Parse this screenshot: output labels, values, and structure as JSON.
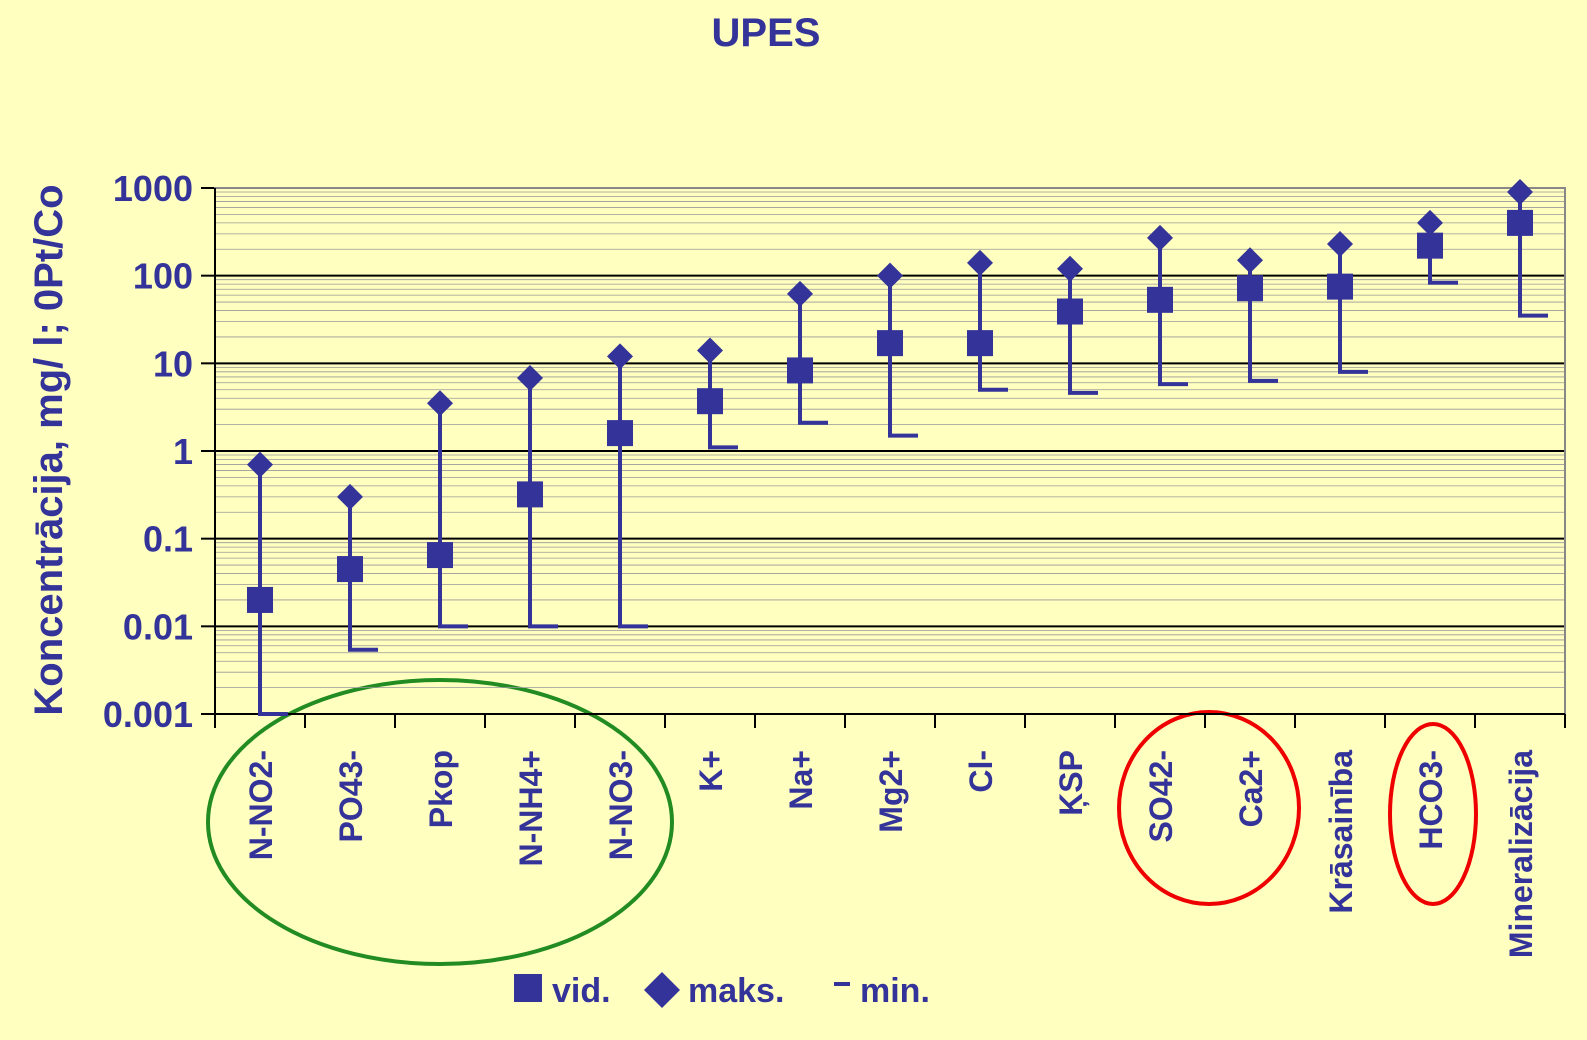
{
  "chart_data": {
    "type": "high-low",
    "title": "UPES",
    "y_label": "Koncentrācija, mg/ l; 0Pt/Co",
    "log_scale": true,
    "grid": true,
    "ylim": [
      0.001,
      1000
    ],
    "yticks": [
      1000,
      100,
      10,
      1,
      0.1,
      0.01,
      0.001
    ],
    "categories": [
      "N-NO2-",
      "PO43-",
      "Pkop",
      "N-NH4+",
      "N-NO3-",
      "K+",
      "Na+",
      "Mg2+",
      "Cl-",
      "ĶSP",
      "SO42-",
      "Ca2+",
      "Krāsainība",
      "HCO3-",
      "Mineralizācija"
    ],
    "series": [
      {
        "name": "vid.",
        "color": "#333399",
        "values": [
          0.02,
          0.045,
          0.065,
          0.32,
          1.6,
          3.7,
          8.3,
          17,
          17,
          39,
          53,
          72,
          75,
          220,
          400
        ]
      },
      {
        "name": "maks.",
        "color": "#333399",
        "values": [
          0.7,
          0.3,
          3.5,
          6.8,
          12,
          14,
          62,
          100,
          140,
          120,
          270,
          150,
          230,
          400,
          900
        ]
      },
      {
        "name": "min.",
        "color": "#333399",
        "values": [
          0.001,
          0.0054,
          0.01,
          0.01,
          0.01,
          1.1,
          2.1,
          1.5,
          5,
          4.6,
          5.8,
          6.3,
          8,
          83,
          35
        ]
      }
    ]
  }
}
